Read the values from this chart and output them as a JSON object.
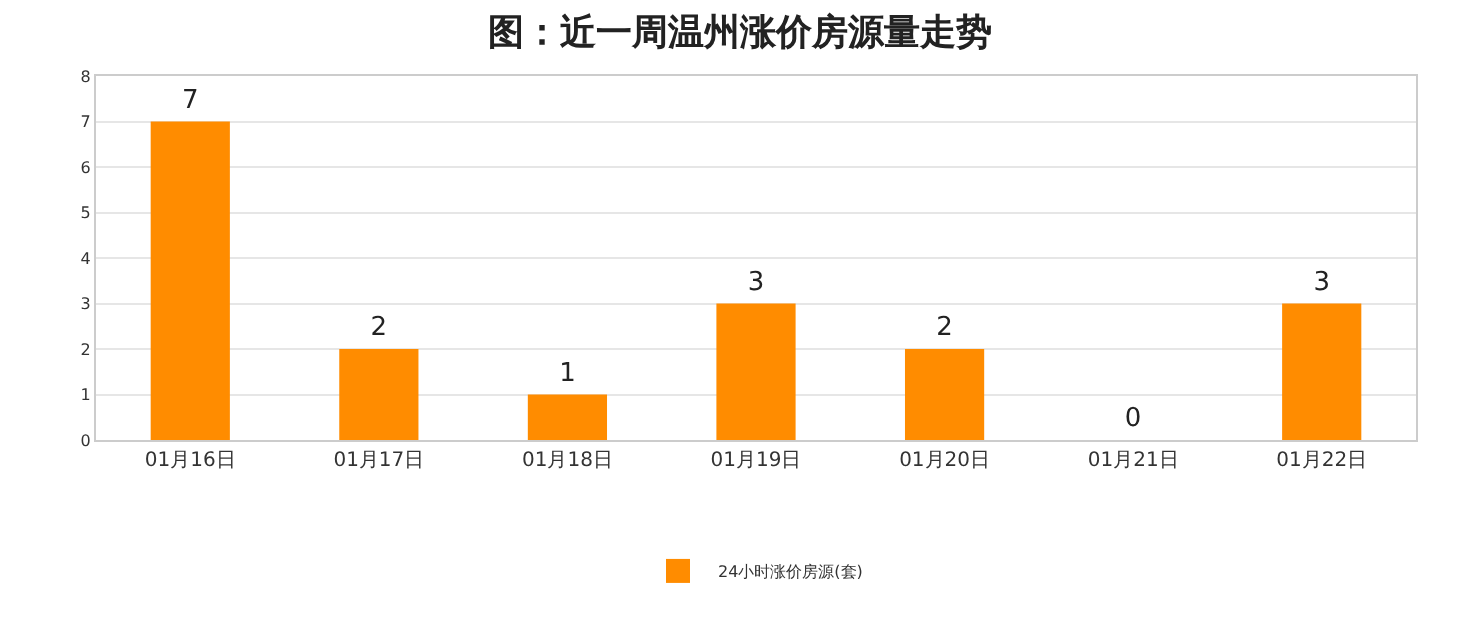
{
  "chart_data": {
    "type": "bar",
    "title": "图：近一周温州涨价房源量走势",
    "categories": [
      "01月16日",
      "01月17日",
      "01月18日",
      "01月19日",
      "01月20日",
      "01月21日",
      "01月22日"
    ],
    "series": [
      {
        "name": "24小时涨价房源(套)",
        "color": "#ff8c00",
        "values": [
          7,
          2,
          1,
          3,
          2,
          0,
          3
        ]
      }
    ],
    "ylim": [
      0,
      8
    ],
    "yticks": [
      0,
      1,
      2,
      3,
      4,
      5,
      6,
      7,
      8
    ],
    "grid": "y",
    "legend": "bottom",
    "data_labels": true
  }
}
